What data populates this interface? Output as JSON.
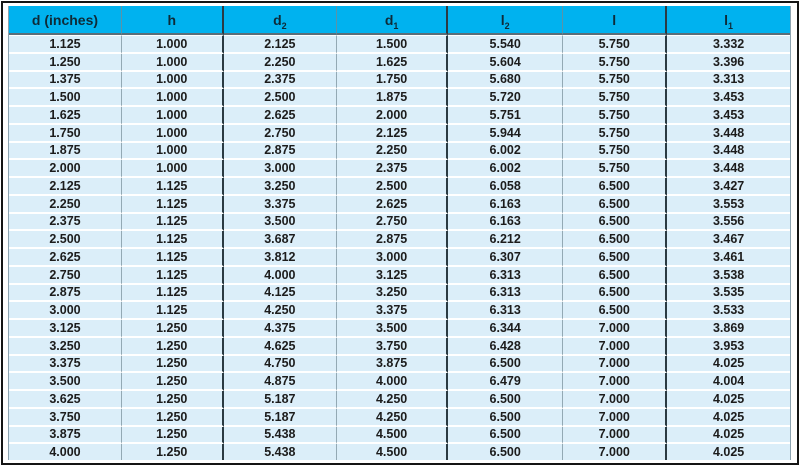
{
  "colors": {
    "header_bg": "#00b2ef",
    "header_text": "#0e2b38",
    "row_bg": "#dbeef9",
    "cell_text": "#1c1c1c",
    "frame_border": "#141414",
    "thin_divider": "#93a9b4",
    "thick_divider": "#2b3a42",
    "row_separator": "#ffffff"
  },
  "chart_data": {
    "type": "table",
    "legend_position": "none",
    "columns": [
      {
        "label": "d (inches)",
        "base": "d (inches)",
        "sub": ""
      },
      {
        "label": "h",
        "base": "h",
        "sub": ""
      },
      {
        "label": "d2",
        "base": "d",
        "sub": "2"
      },
      {
        "label": "d1",
        "base": "d",
        "sub": "1"
      },
      {
        "label": "l2",
        "base": "l",
        "sub": "2"
      },
      {
        "label": "l",
        "base": "l",
        "sub": ""
      },
      {
        "label": "l1",
        "base": "l",
        "sub": "1"
      }
    ],
    "rows": [
      [
        "1.125",
        "1.000",
        "2.125",
        "1.500",
        "5.540",
        "5.750",
        "3.332"
      ],
      [
        "1.250",
        "1.000",
        "2.250",
        "1.625",
        "5.604",
        "5.750",
        "3.396"
      ],
      [
        "1.375",
        "1.000",
        "2.375",
        "1.750",
        "5.680",
        "5.750",
        "3.313"
      ],
      [
        "1.500",
        "1.000",
        "2.500",
        "1.875",
        "5.720",
        "5.750",
        "3.453"
      ],
      [
        "1.625",
        "1.000",
        "2.625",
        "2.000",
        "5.751",
        "5.750",
        "3.453"
      ],
      [
        "1.750",
        "1.000",
        "2.750",
        "2.125",
        "5.944",
        "5.750",
        "3.448"
      ],
      [
        "1.875",
        "1.000",
        "2.875",
        "2.250",
        "6.002",
        "5.750",
        "3.448"
      ],
      [
        "2.000",
        "1.000",
        "3.000",
        "2.375",
        "6.002",
        "5.750",
        "3.448"
      ],
      [
        "2.125",
        "1.125",
        "3.250",
        "2.500",
        "6.058",
        "6.500",
        "3.427"
      ],
      [
        "2.250",
        "1.125",
        "3.375",
        "2.625",
        "6.163",
        "6.500",
        "3.553"
      ],
      [
        "2.375",
        "1.125",
        "3.500",
        "2.750",
        "6.163",
        "6.500",
        "3.556"
      ],
      [
        "2.500",
        "1.125",
        "3.687",
        "2.875",
        "6.212",
        "6.500",
        "3.467"
      ],
      [
        "2.625",
        "1.125",
        "3.812",
        "3.000",
        "6.307",
        "6.500",
        "3.461"
      ],
      [
        "2.750",
        "1.125",
        "4.000",
        "3.125",
        "6.313",
        "6.500",
        "3.538"
      ],
      [
        "2.875",
        "1.125",
        "4.125",
        "3.250",
        "6.313",
        "6.500",
        "3.535"
      ],
      [
        "3.000",
        "1.125",
        "4.250",
        "3.375",
        "6.313",
        "6.500",
        "3.533"
      ],
      [
        "3.125",
        "1.250",
        "4.375",
        "3.500",
        "6.344",
        "7.000",
        "3.869"
      ],
      [
        "3.250",
        "1.250",
        "4.625",
        "3.750",
        "6.428",
        "7.000",
        "3.953"
      ],
      [
        "3.375",
        "1.250",
        "4.750",
        "3.875",
        "6.500",
        "7.000",
        "4.025"
      ],
      [
        "3.500",
        "1.250",
        "4.875",
        "4.000",
        "6.479",
        "7.000",
        "4.004"
      ],
      [
        "3.625",
        "1.250",
        "5.187",
        "4.250",
        "6.500",
        "7.000",
        "4.025"
      ],
      [
        "3.750",
        "1.250",
        "5.187",
        "4.250",
        "6.500",
        "7.000",
        "4.025"
      ],
      [
        "3.875",
        "1.250",
        "5.438",
        "4.500",
        "6.500",
        "7.000",
        "4.025"
      ],
      [
        "4.000",
        "1.250",
        "5.438",
        "4.500",
        "6.500",
        "7.000",
        "4.025"
      ]
    ]
  }
}
